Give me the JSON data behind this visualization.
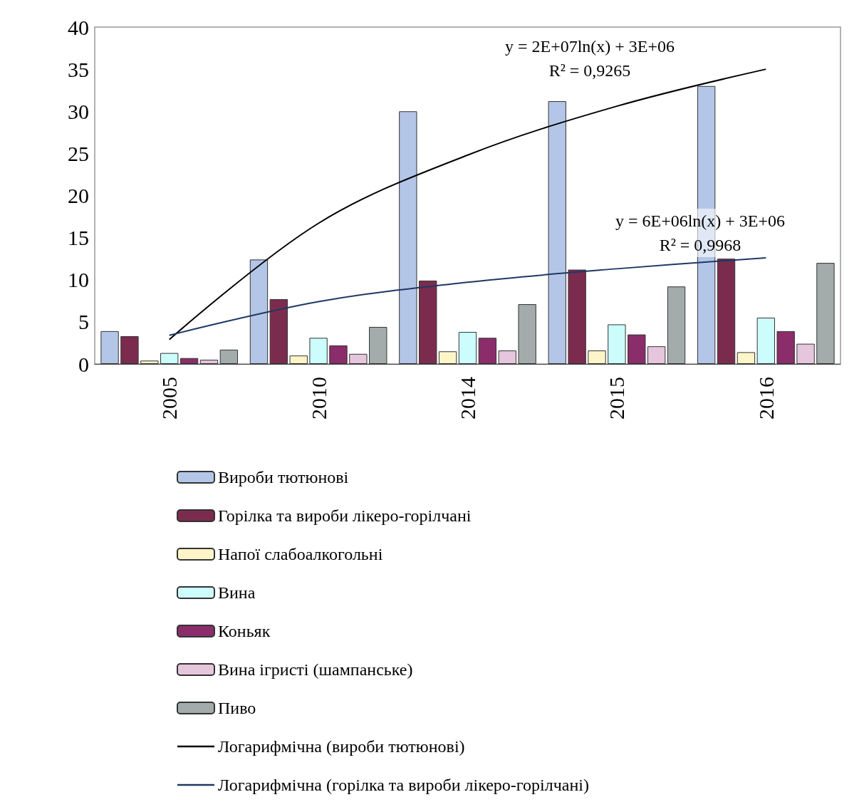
{
  "chart_data": {
    "type": "bar",
    "categories": [
      "2005",
      "2010",
      "2014",
      "2015",
      "2016"
    ],
    "series": [
      {
        "name": "Вироби тютюнові",
        "color": "#b4c6e7",
        "values": [
          3.9,
          12.4,
          30.0,
          31.2,
          33.0
        ]
      },
      {
        "name": "Горілка та вироби лікеро-горілчані",
        "color": "#7b2c4e",
        "values": [
          3.3,
          7.7,
          9.9,
          11.2,
          12.5
        ]
      },
      {
        "name": "Напої слабоалкогольні",
        "color": "#fdf5c8",
        "values": [
          0.4,
          1.0,
          1.5,
          1.6,
          1.4
        ]
      },
      {
        "name": "Вина",
        "color": "#ccfcfc",
        "values": [
          1.3,
          3.1,
          3.8,
          4.7,
          5.5
        ]
      },
      {
        "name": "Коньяк",
        "color": "#8a2d6a",
        "values": [
          0.7,
          2.2,
          3.1,
          3.5,
          3.9
        ]
      },
      {
        "name": "Вина ігристі (шампанське)",
        "color": "#e6c6dc",
        "values": [
          0.5,
          1.2,
          1.6,
          2.1,
          2.4
        ]
      },
      {
        "name": "Пиво",
        "color": "#a3abab",
        "values": [
          1.7,
          4.4,
          7.1,
          9.2,
          12.0
        ]
      },
      {
        "name": "Логарифмічна (вироби тютюнові)",
        "type": "line",
        "color": "#000000",
        "values": [
          2.9,
          16.7,
          24.8,
          30.6,
          35.0
        ]
      },
      {
        "name": "Логарифмічна (горілка та вироби лікеро-горілчані)",
        "type": "line",
        "color": "#1f3864",
        "values": [
          3.4,
          7.4,
          9.7,
          11.3,
          12.6
        ]
      }
    ],
    "ylim": [
      0,
      40
    ],
    "yticks": [
      0,
      5,
      10,
      15,
      20,
      25,
      30,
      35,
      40
    ],
    "grid": false,
    "legend": "bottom",
    "marker": "none",
    "annotations": [
      "y = 2E+07ln(x) + 3E+06\nR² = 0,9265",
      "y = 6E+06ln(x) + 3E+06\nR² = 0,9968"
    ]
  }
}
